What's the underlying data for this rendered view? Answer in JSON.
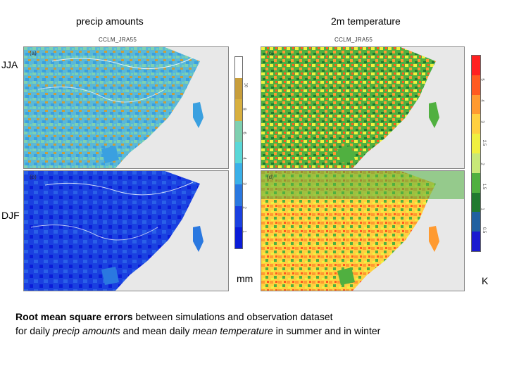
{
  "titles": {
    "precip": "precip amounts",
    "temp": "2m temperature"
  },
  "run_label": "CCLM_JRA55",
  "rows": {
    "summer": "JJA",
    "winter": "DJF"
  },
  "panel_tags": {
    "a": "(a)",
    "b": "(b)",
    "c": "(c)",
    "d": "(d)"
  },
  "units": {
    "precip": "mm",
    "temp": "K"
  },
  "caption": {
    "bold": "Root mean square errors",
    "part1": " between simulations and observation dataset",
    "part2": "for daily ",
    "italic1": "precip amounts",
    "part3": " and mean daily ",
    "italic2": "mean temperature",
    "part4": " in summer and in winter"
  },
  "colors": {
    "precip_scale": [
      "#ffffff",
      "#c89e3c",
      "#d8b040",
      "#7fd0b0",
      "#5ad8d8",
      "#3ab0e8",
      "#2a78e0",
      "#1a40e0",
      "#0a1cd8"
    ],
    "temp_scale": [
      "#ff2020",
      "#ff5a20",
      "#ff9a30",
      "#ffd040",
      "#f0f040",
      "#c8e878",
      "#50b040",
      "#207a30",
      "#2060a0",
      "#1a1ad0"
    ]
  }
}
